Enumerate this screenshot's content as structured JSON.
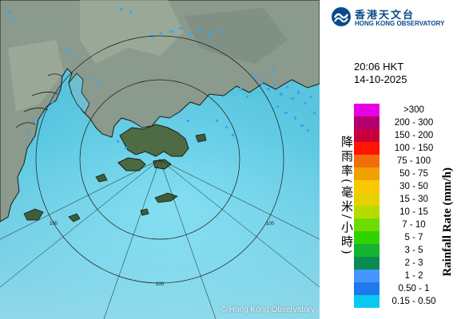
{
  "map": {
    "range_ring_label": "100",
    "copyright": "© Hong Kong Observatory"
  },
  "header": {
    "org_name_zh": "香港天文台",
    "org_name_en": "HONG KONG OBSERVATORY"
  },
  "timestamp": {
    "time": "20:06 HKT",
    "date": "14-10-2025"
  },
  "legend": {
    "title_zh": "降雨率(毫米/小時)",
    "title_en": "Rainfall Rate (mm/h)",
    "items": [
      {
        "label": ">300",
        "color": "#e600e6"
      },
      {
        "label": "200 - 300",
        "color": "#b4006e"
      },
      {
        "label": "150 - 200",
        "color": "#c8003c"
      },
      {
        "label": "100 - 150",
        "color": "#ff1400"
      },
      {
        "label": "75 - 100",
        "color": "#f06e0a"
      },
      {
        "label": "50 - 75",
        "color": "#f0a000"
      },
      {
        "label": "30 - 50",
        "color": "#fac800"
      },
      {
        "label": "15 - 30",
        "color": "#e6d200"
      },
      {
        "label": "10 - 15",
        "color": "#b4dc00"
      },
      {
        "label": "7 - 10",
        "color": "#6edc00"
      },
      {
        "label": "5 - 7",
        "color": "#32d200"
      },
      {
        "label": "3 - 5",
        "color": "#14b432"
      },
      {
        "label": "2 - 3",
        "color": "#0a8c50"
      },
      {
        "label": "1 - 2",
        "color": "#4696ff"
      },
      {
        "label": "0.50 - 1",
        "color": "#1e78f0"
      },
      {
        "label": "0.15 - 0.50",
        "color": "#0ac8f0"
      }
    ]
  }
}
